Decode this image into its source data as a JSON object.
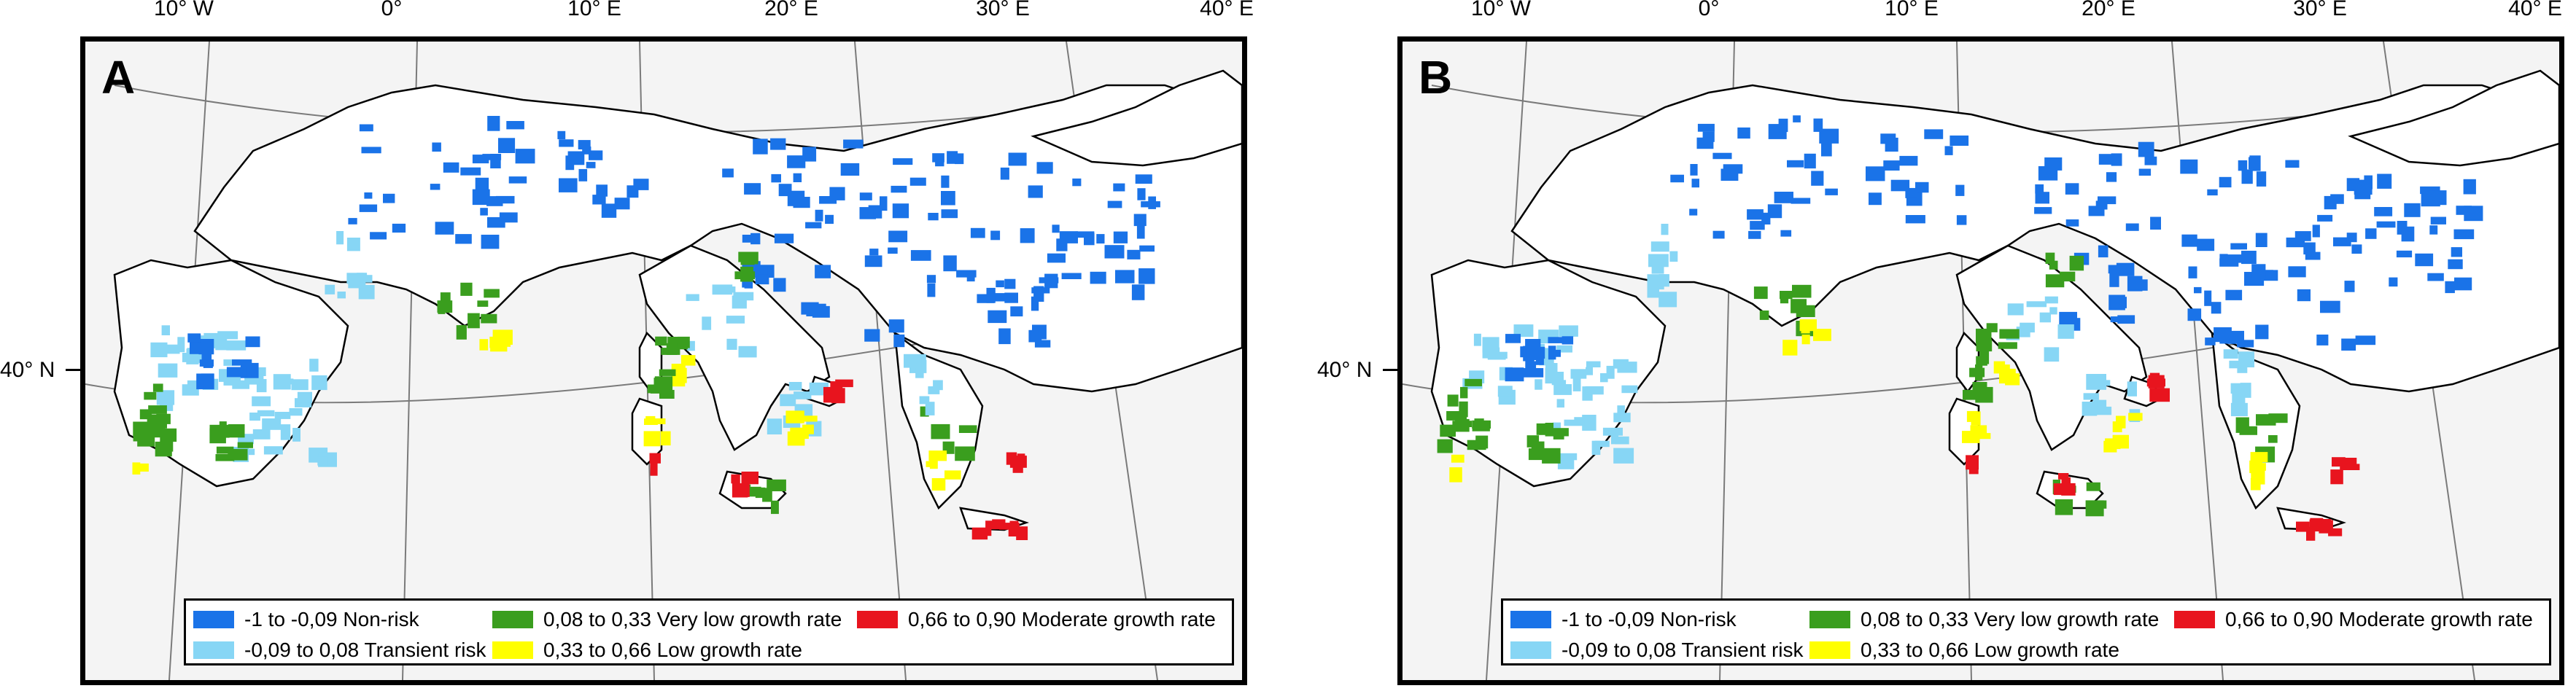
{
  "axes": {
    "longitude_labels": [
      "10° W",
      "0°",
      "10° E",
      "20° E",
      "30° E",
      "40° E"
    ],
    "latitude_label": "40° N"
  },
  "panels": [
    {
      "letter": "A"
    },
    {
      "letter": "B"
    }
  ],
  "legend": {
    "items": [
      {
        "label": "-1 to -0,09 Non-risk",
        "color": "#1a73e8"
      },
      {
        "label": "-0,09 to 0,08 Transient risk",
        "color": "#87d6f5"
      },
      {
        "label": "0,08 to 0,33 Very low growth rate",
        "color": "#3a9e1e"
      },
      {
        "label": "0,33 to 0,66 Low growth rate",
        "color": "#ffff00"
      },
      {
        "label": "0,66 to 0,90 Moderate growth rate",
        "color": "#e8141e"
      }
    ]
  },
  "colors": {
    "background": "#f4f4f4",
    "coastline": "#000000",
    "graticule": "#7a7a7a"
  }
}
